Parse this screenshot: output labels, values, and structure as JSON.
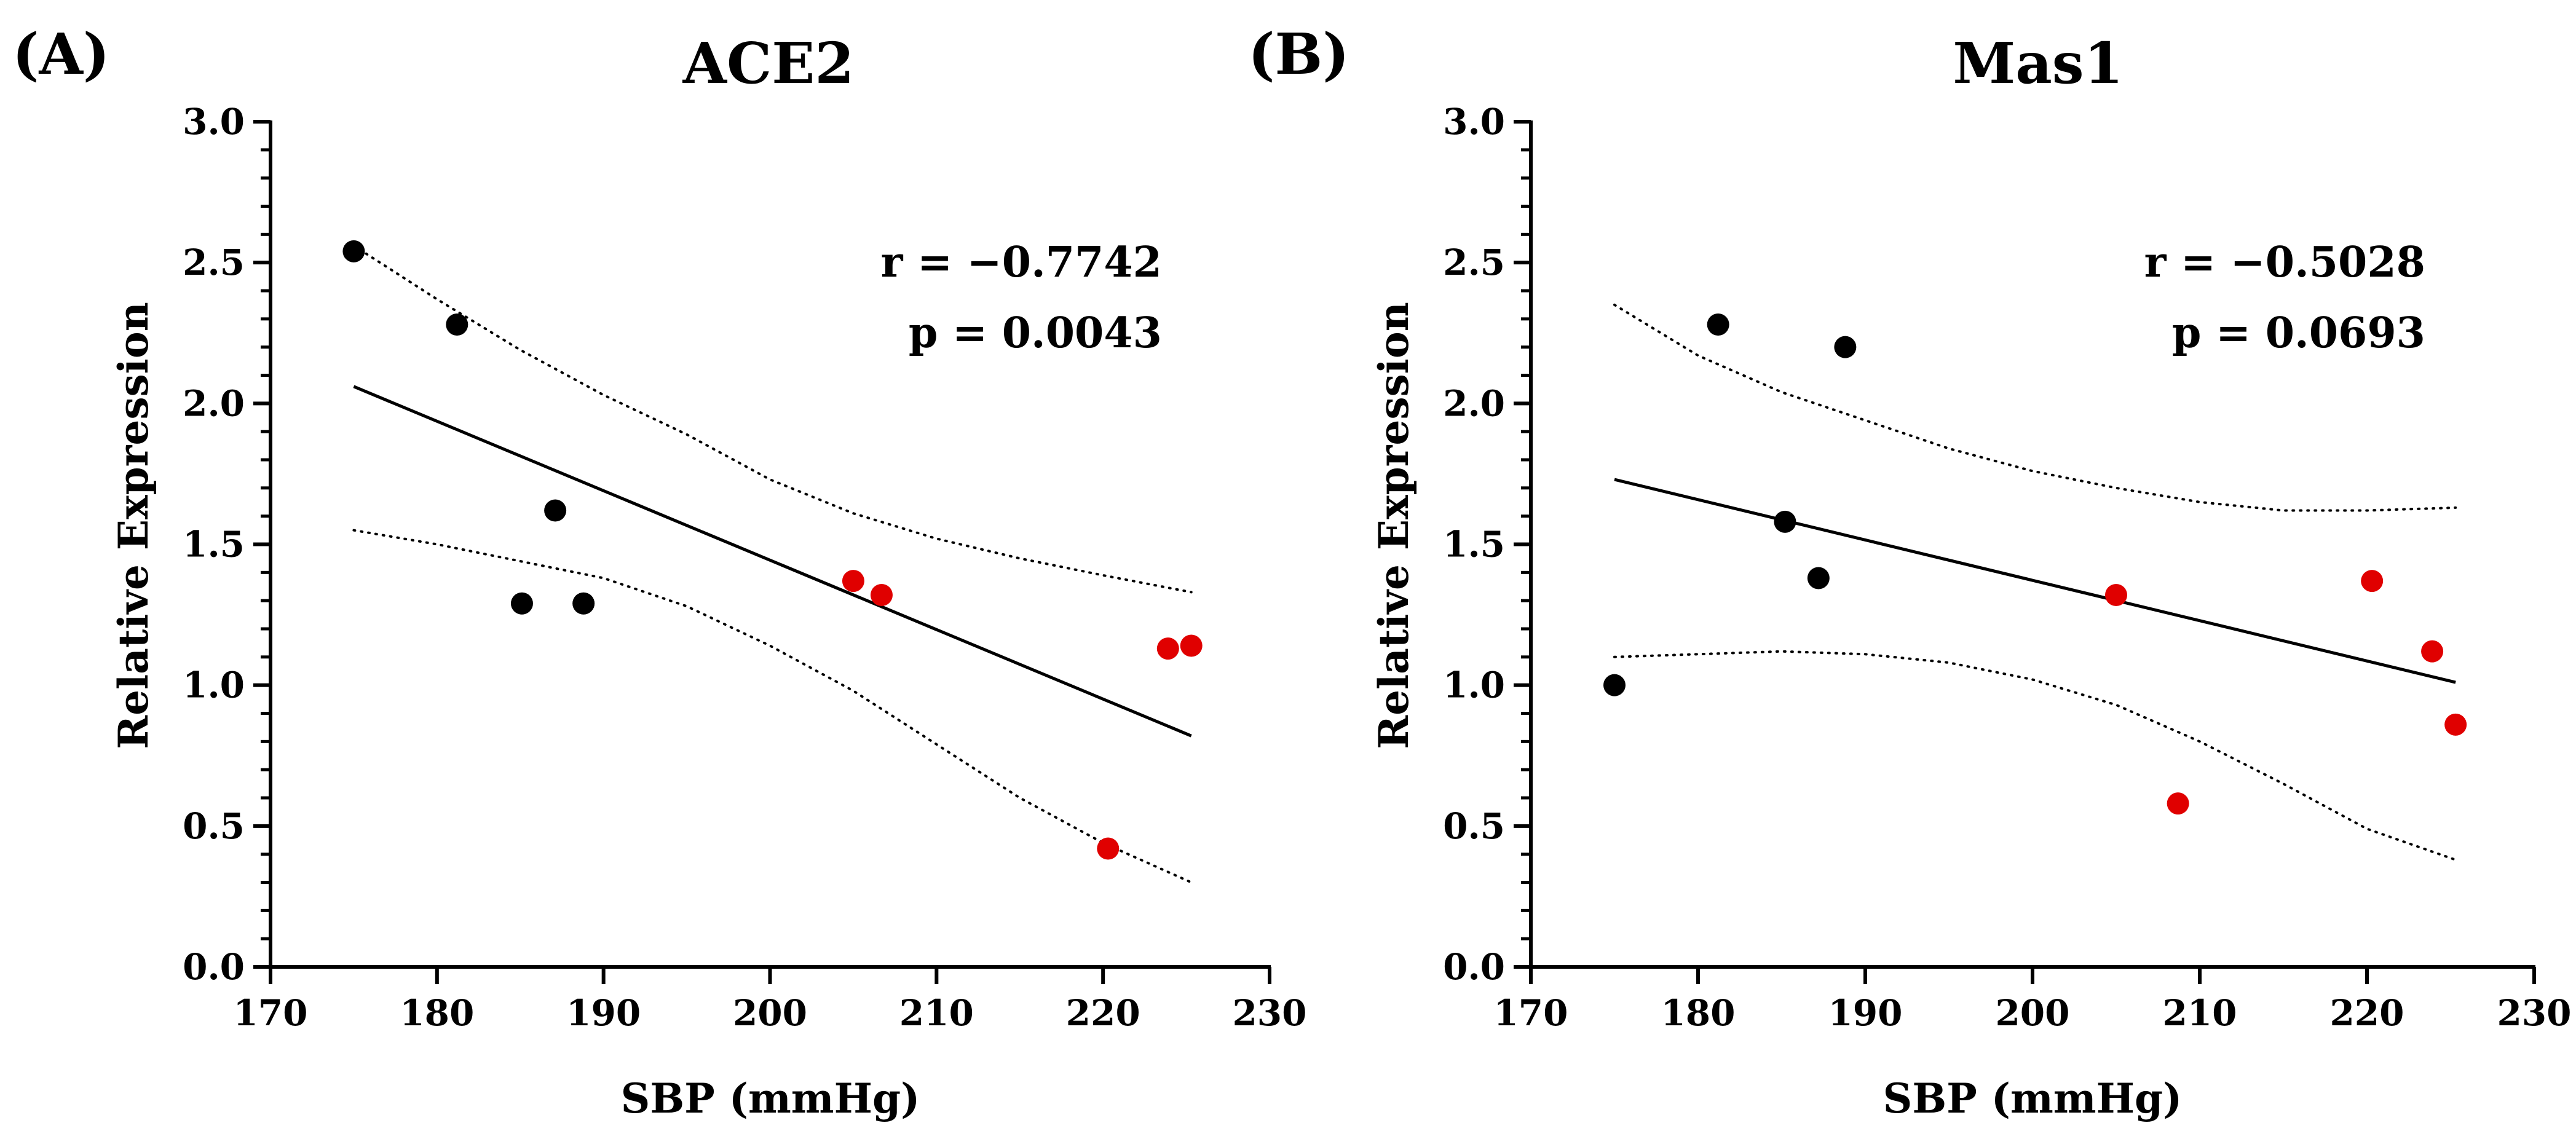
{
  "chart_data": [
    {
      "type": "scatter",
      "panel_label": "(A)",
      "title": "ACE2",
      "xlabel": "SBP (mmHg)",
      "ylabel": "Relative Expression",
      "xlim": [
        170,
        230
      ],
      "ylim": [
        0.0,
        3.0
      ],
      "x_ticks": [
        "170",
        "180",
        "190",
        "200",
        "210",
        "220",
        "230"
      ],
      "y_ticks": [
        "0.0",
        "0.5",
        "1.0",
        "1.5",
        "2.0",
        "2.5",
        "3.0"
      ],
      "stats": {
        "r": "r = −0.7742",
        "p": "p = 0.0043"
      },
      "series": [
        {
          "name": "group-black",
          "color": "#000000",
          "points": [
            [
              175.0,
              2.54
            ],
            [
              181.2,
              2.28
            ],
            [
              187.1,
              1.62
            ],
            [
              185.1,
              1.29
            ],
            [
              188.8,
              1.29
            ]
          ]
        },
        {
          "name": "group-red",
          "color": "#e00000",
          "points": [
            [
              205.0,
              1.37
            ],
            [
              206.7,
              1.32
            ],
            [
              223.9,
              1.13
            ],
            [
              225.3,
              1.14
            ],
            [
              220.3,
              0.42
            ]
          ]
        }
      ],
      "regression": {
        "x": [
          175.0,
          225.3
        ],
        "y": [
          2.06,
          0.82
        ]
      },
      "confidence_band": {
        "upper": {
          "x": [
            175,
            180,
            185,
            190,
            195,
            200,
            205,
            210,
            215,
            220,
            225.3
          ],
          "y": [
            2.56,
            2.37,
            2.19,
            2.03,
            1.89,
            1.73,
            1.61,
            1.52,
            1.45,
            1.39,
            1.33
          ]
        },
        "lower": {
          "x": [
            175,
            180,
            185,
            190,
            195,
            200,
            205,
            210,
            215,
            220,
            225.3
          ],
          "y": [
            1.55,
            1.5,
            1.44,
            1.38,
            1.28,
            1.14,
            0.98,
            0.79,
            0.6,
            0.44,
            0.3
          ]
        }
      }
    },
    {
      "type": "scatter",
      "panel_label": "(B)",
      "title": "Mas1",
      "xlabel": "SBP (mmHg)",
      "ylabel": "Relative Expression",
      "xlim": [
        170,
        230
      ],
      "ylim": [
        0.0,
        3.0
      ],
      "x_ticks": [
        "170",
        "180",
        "190",
        "200",
        "210",
        "220",
        "230"
      ],
      "y_ticks": [
        "0.0",
        "0.5",
        "1.0",
        "1.5",
        "2.0",
        "2.5",
        "3.0"
      ],
      "stats": {
        "r": "r = −0.5028",
        "p": "p = 0.0693"
      },
      "series": [
        {
          "name": "group-black",
          "color": "#000000",
          "points": [
            [
              175.0,
              1.0
            ],
            [
              181.2,
              2.28
            ],
            [
              188.8,
              2.2
            ],
            [
              185.2,
              1.58
            ],
            [
              187.2,
              1.38
            ]
          ]
        },
        {
          "name": "group-red",
          "color": "#e00000",
          "points": [
            [
              205.0,
              1.32
            ],
            [
              208.7,
              0.58
            ],
            [
              220.3,
              1.37
            ],
            [
              223.9,
              1.12
            ],
            [
              225.3,
              0.86
            ]
          ]
        }
      ],
      "regression": {
        "x": [
          175.0,
          225.3
        ],
        "y": [
          1.73,
          1.01
        ]
      },
      "confidence_band": {
        "upper": {
          "x": [
            175,
            180,
            185,
            190,
            195,
            200,
            205,
            210,
            215,
            220,
            225.3
          ],
          "y": [
            2.35,
            2.17,
            2.04,
            1.94,
            1.84,
            1.76,
            1.7,
            1.65,
            1.62,
            1.62,
            1.63
          ]
        },
        "lower": {
          "x": [
            175,
            180,
            185,
            190,
            195,
            200,
            205,
            210,
            215,
            220,
            225.3
          ],
          "y": [
            1.1,
            1.11,
            1.12,
            1.11,
            1.08,
            1.02,
            0.93,
            0.8,
            0.65,
            0.49,
            0.38
          ]
        }
      }
    }
  ]
}
